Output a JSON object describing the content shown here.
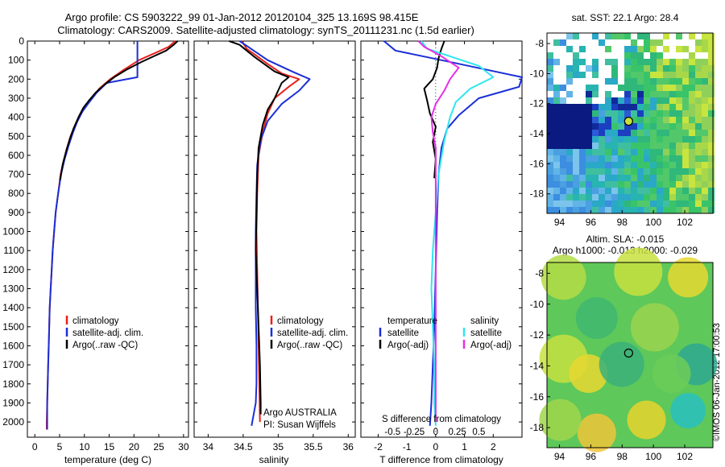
{
  "header": {
    "line1": "Argo profile: CS 5903222_99 01-Jan-2012 20120104_325 13.169S 98.415E",
    "line2": "Climatology: CARS2009. Satellite-adjusted climatology: synTS_20111231.nc (1.5d earlier)"
  },
  "side_stamp": "©IMOS 06-Jan-2012 17:00:53",
  "colors": {
    "climatology": "#e8211b",
    "satellite": "#1a2fd6",
    "argo": "#000000",
    "sat_cyan": "#2ee6f0",
    "argo_magenta": "#e62ee6"
  },
  "chart_data": [
    {
      "id": "temperature",
      "type": "line",
      "xlabel": "temperature (deg C)",
      "ylabel": "",
      "xlim": [
        -1.5,
        31
      ],
      "ylim": [
        2080,
        0
      ],
      "xticks": [
        0,
        5,
        10,
        15,
        20,
        25,
        30
      ],
      "yticks": [
        0,
        100,
        200,
        300,
        400,
        500,
        600,
        700,
        800,
        900,
        1000,
        1100,
        1200,
        1300,
        1400,
        1500,
        1600,
        1700,
        1800,
        1900,
        2000
      ],
      "legend": [
        "climatology",
        "satellite-adj. clim.",
        "Argo(..raw -QC)"
      ],
      "series": [
        {
          "name": "climatology",
          "color": "climatology",
          "points": [
            [
              28.3,
              0
            ],
            [
              27,
              30
            ],
            [
              24.5,
              60
            ],
            [
              21,
              100
            ],
            [
              18,
              150
            ],
            [
              15.2,
              200
            ],
            [
              13,
              250
            ],
            [
              11.5,
              300
            ],
            [
              10,
              350
            ],
            [
              9,
              400
            ],
            [
              8,
              450
            ],
            [
              7.2,
              500
            ],
            [
              6.5,
              560
            ],
            [
              5.8,
              630
            ],
            [
              5.2,
              700
            ],
            [
              4.7,
              800
            ],
            [
              4.2,
              900
            ],
            [
              3.9,
              1000
            ],
            [
              3.6,
              1100
            ],
            [
              3.4,
              1200
            ],
            [
              3.2,
              1300
            ],
            [
              3,
              1400
            ],
            [
              2.9,
              1500
            ],
            [
              2.8,
              1600
            ],
            [
              2.7,
              1700
            ],
            [
              2.6,
              1800
            ],
            [
              2.5,
              1900
            ],
            [
              2.4,
              2000
            ],
            [
              2.4,
              2040
            ]
          ]
        },
        {
          "name": "satellite-adj. clim.",
          "color": "satellite",
          "points": [
            [
              20.7,
              0
            ],
            [
              20.7,
              190
            ],
            [
              14.5,
              220
            ],
            [
              12.5,
              270
            ],
            [
              11,
              320
            ],
            [
              9.6,
              370
            ],
            [
              8.6,
              420
            ],
            [
              7.7,
              480
            ],
            [
              6.8,
              550
            ],
            [
              6,
              620
            ],
            [
              5.3,
              700
            ],
            [
              4.7,
              800
            ],
            [
              4.2,
              900
            ],
            [
              3.9,
              1000
            ],
            [
              3.6,
              1100
            ],
            [
              3.4,
              1200
            ],
            [
              3.2,
              1300
            ],
            [
              3,
              1400
            ],
            [
              2.9,
              1500
            ],
            [
              2.8,
              1600
            ],
            [
              2.7,
              1700
            ],
            [
              2.6,
              1800
            ],
            [
              2.5,
              1900
            ],
            [
              2.5,
              2000
            ],
            [
              2.5,
              2040
            ]
          ]
        },
        {
          "name": "Argo(..raw -QC)",
          "color": "argo",
          "points": [
            [
              28.8,
              0
            ],
            [
              28,
              20
            ],
            [
              26.5,
              50
            ],
            [
              24,
              80
            ],
            [
              21.5,
              110
            ],
            [
              18.5,
              150
            ],
            [
              16,
              190
            ],
            [
              14,
              230
            ],
            [
              12.3,
              270
            ],
            [
              11,
              310
            ],
            [
              9.8,
              350
            ],
            [
              8.8,
              400
            ],
            [
              7.8,
              460
            ],
            [
              7,
              520
            ],
            [
              6.3,
              580
            ],
            [
              5.6,
              650
            ],
            [
              5.1,
              730
            ]
          ]
        }
      ]
    },
    {
      "id": "salinity",
      "type": "line",
      "xlabel": "salinity",
      "xlim": [
        33.8,
        36.1
      ],
      "ylim": [
        2080,
        0
      ],
      "xticks": [
        34,
        34.5,
        35,
        35.5,
        36
      ],
      "yticks": [],
      "legend": [
        "climatology",
        "satellite-adj. clim.",
        "Argo(..raw -QC)"
      ],
      "annotations": [
        "Argo AUSTRALIA",
        "PI: Susan Wijffels"
      ],
      "series": [
        {
          "name": "climatology",
          "color": "climatology",
          "points": [
            [
              34.48,
              0
            ],
            [
              34.55,
              40
            ],
            [
              34.7,
              80
            ],
            [
              34.85,
              120
            ],
            [
              35.05,
              170
            ],
            [
              35.3,
              200
            ],
            [
              35.15,
              240
            ],
            [
              34.95,
              300
            ],
            [
              34.85,
              380
            ],
            [
              34.78,
              480
            ],
            [
              34.72,
              600
            ],
            [
              34.7,
              800
            ],
            [
              34.69,
              1000
            ],
            [
              34.7,
              1200
            ],
            [
              34.71,
              1400
            ],
            [
              34.72,
              1600
            ],
            [
              34.73,
              1800
            ],
            [
              34.74,
              2000
            ]
          ]
        },
        {
          "name": "satellite-adj. clim.",
          "color": "satellite",
          "points": [
            [
              34.45,
              0
            ],
            [
              34.65,
              50
            ],
            [
              34.85,
              100
            ],
            [
              35.2,
              160
            ],
            [
              35.45,
              200
            ],
            [
              35.3,
              260
            ],
            [
              35.05,
              330
            ],
            [
              34.85,
              420
            ],
            [
              34.75,
              520
            ],
            [
              34.7,
              650
            ],
            [
              34.69,
              800
            ],
            [
              34.68,
              1000
            ],
            [
              34.68,
              1200
            ],
            [
              34.68,
              1400
            ],
            [
              34.69,
              1600
            ],
            [
              34.69,
              1800
            ],
            [
              34.68,
              1900
            ],
            [
              34.62,
              2020
            ]
          ]
        },
        {
          "name": "Argo(..raw -QC)",
          "color": "argo",
          "points": [
            [
              34.3,
              0
            ],
            [
              34.45,
              20
            ],
            [
              34.55,
              50
            ],
            [
              34.65,
              80
            ],
            [
              34.8,
              120
            ],
            [
              34.95,
              160
            ],
            [
              35.15,
              190
            ],
            [
              35.05,
              220
            ],
            [
              35.0,
              260
            ],
            [
              34.95,
              300
            ],
            [
              34.85,
              360
            ],
            [
              34.78,
              440
            ],
            [
              34.72,
              560
            ],
            [
              34.7,
              700
            ],
            [
              34.69,
              900
            ],
            [
              34.68,
              1100
            ],
            [
              34.7,
              1300
            ],
            [
              34.72,
              1500
            ],
            [
              34.74,
              1700
            ],
            [
              34.75,
              1900
            ],
            [
              34.75,
              1960
            ]
          ]
        }
      ]
    },
    {
      "id": "differences",
      "type": "line",
      "xlabel": "T difference from climatology",
      "xlabel2": "S difference from climatology",
      "xlim": [
        -2.6,
        3.0
      ],
      "ylim": [
        2080,
        0
      ],
      "xticks": [
        -2,
        -1,
        0,
        1,
        2
      ],
      "xticks2": [
        "-0.5",
        "-0.25",
        "0",
        "0.25",
        "0.5"
      ],
      "xticks2_pos": [
        -1.5,
        -0.75,
        0,
        0.75,
        1.5
      ],
      "yticks": [],
      "legend_headers": [
        "temperature",
        "salinity"
      ],
      "legend": [
        "satellite",
        "Argo(-adj)",
        "satellite",
        "Argo(-adj)"
      ],
      "series": [
        {
          "name": "temperature satellite",
          "color": "satellite",
          "points": [
            [
              -1.8,
              0
            ],
            [
              -1.4,
              50
            ],
            [
              0.2,
              100
            ],
            [
              3.0,
              190
            ],
            [
              2.9,
              240
            ],
            [
              1.5,
              300
            ],
            [
              0.8,
              390
            ],
            [
              0.4,
              460
            ],
            [
              0.2,
              560
            ],
            [
              0.1,
              700
            ],
            [
              0.05,
              900
            ],
            [
              0,
              1200
            ],
            [
              -0.05,
              1500
            ],
            [
              -0.1,
              1700
            ],
            [
              -0.15,
              1900
            ],
            [
              -0.2,
              2020
            ]
          ]
        },
        {
          "name": "temperature Argo(-adj)",
          "color": "argo",
          "points": [
            [
              0.3,
              0
            ],
            [
              0.2,
              40
            ],
            [
              0.1,
              90
            ],
            [
              0.05,
              140
            ],
            [
              -0.1,
              200
            ],
            [
              -0.4,
              250
            ],
            [
              -0.3,
              310
            ],
            [
              -0.2,
              380
            ],
            [
              0,
              450
            ],
            [
              -0.1,
              530
            ],
            [
              0,
              620
            ],
            [
              -0.05,
              720
            ]
          ]
        },
        {
          "name": "salinity satellite",
          "color": "sat_cyan",
          "points": [
            [
              -0.5,
              0
            ],
            [
              -0.3,
              40
            ],
            [
              0.5,
              80
            ],
            [
              1.5,
              130
            ],
            [
              2,
              190
            ],
            [
              1.2,
              250
            ],
            [
              0.7,
              320
            ],
            [
              0.5,
              400
            ],
            [
              0.3,
              520
            ],
            [
              0.1,
              700
            ],
            [
              0,
              900
            ],
            [
              -0.1,
              1100
            ],
            [
              -0.15,
              1300
            ],
            [
              -0.1,
              1500
            ],
            [
              -0.05,
              1700
            ],
            [
              -0.05,
              1900
            ],
            [
              0,
              2020
            ]
          ]
        },
        {
          "name": "salinity Argo(-adj)",
          "color": "argo_magenta",
          "points": [
            [
              -0.6,
              0
            ],
            [
              -0.4,
              30
            ],
            [
              0.2,
              80
            ],
            [
              0.8,
              140
            ],
            [
              0.5,
              200
            ],
            [
              0.3,
              260
            ],
            [
              0,
              330
            ],
            [
              -0.15,
              400
            ],
            [
              -0.1,
              480
            ],
            [
              0,
              560
            ],
            [
              0,
              700
            ],
            [
              0,
              900
            ],
            [
              0,
              1100
            ],
            [
              0,
              1300
            ],
            [
              0,
              1500
            ],
            [
              0,
              1700
            ],
            [
              0,
              1900
            ],
            [
              0,
              2000
            ]
          ]
        }
      ]
    },
    {
      "id": "sst_map",
      "type": "heatmap",
      "title": "sat. SST: 22.1  Argo: 28.4",
      "xlim": [
        93.2,
        103.8
      ],
      "ylim": [
        -19.3,
        -7.3
      ],
      "xticks": [
        94,
        96,
        98,
        100,
        102
      ],
      "yticks": [
        -8,
        -10,
        -12,
        -14,
        -16,
        -18
      ],
      "marker": [
        98.415,
        -13.169
      ]
    },
    {
      "id": "sla_map",
      "type": "heatmap",
      "title": "Altim. SLA: -0.015",
      "subtitle": "Argo h1000: -0.013 h2000: -0.029",
      "xlim": [
        93.2,
        103.8
      ],
      "ylim": [
        -19.3,
        -7.3
      ],
      "xticks": [
        94,
        96,
        98,
        100,
        102
      ],
      "yticks": [
        -8,
        -10,
        -12,
        -14,
        -16,
        -18
      ],
      "marker": [
        98.415,
        -13.169
      ]
    }
  ]
}
